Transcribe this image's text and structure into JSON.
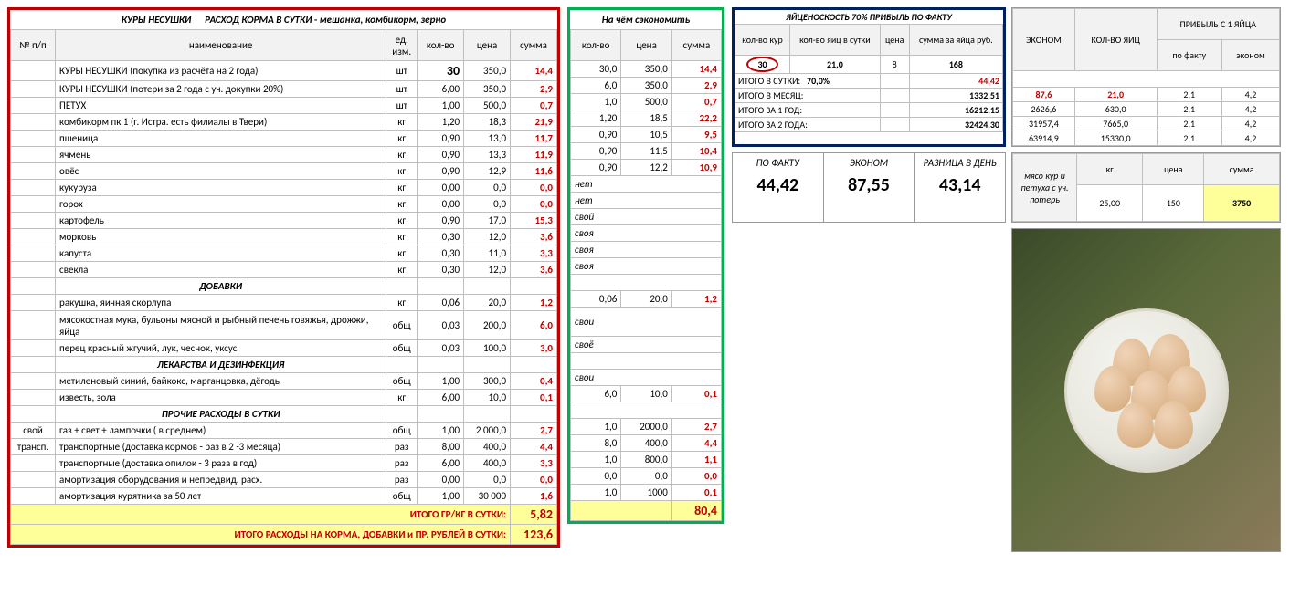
{
  "mainTable": {
    "titleLeft": "КУРЫ  НЕСУШКИ",
    "titleRight": "РАСХОД  КОРМА  В  СУТКИ -  мешанка, комбикорм, зерно",
    "headers": {
      "npp": "№ п/п",
      "name": "наименование",
      "unit": "ед. изм.",
      "qty": "кол-во",
      "price": "цена",
      "sum": "сумма"
    },
    "sideLabel1": "свой",
    "sideLabel2": "трансп.",
    "rows": [
      {
        "name": "КУРЫ НЕСУШКИ  (покупка из расчёта на 2 года)",
        "unit": "шт",
        "qty": "30",
        "price": "350,0",
        "sum": "14,4",
        "qtyBold": true
      },
      {
        "name": "КУРЫ НЕСУШКИ (потери за 2 года с уч. докупки 20%)",
        "unit": "шт",
        "qty": "6,00",
        "price": "350,0",
        "sum": "2,9"
      },
      {
        "name": "ПЕТУХ",
        "unit": "шт",
        "qty": "1,00",
        "price": "500,0",
        "sum": "0,7"
      },
      {
        "name": "комбикорм пк 1 (г. Истра. есть филиалы в Твери)",
        "unit": "кг",
        "qty": "1,20",
        "price": "18,3",
        "sum": "21,9"
      },
      {
        "name": "пшеница",
        "unit": "кг",
        "qty": "0,90",
        "price": "13,0",
        "sum": "11,7"
      },
      {
        "name": "ячмень",
        "unit": "кг",
        "qty": "0,90",
        "price": "13,3",
        "sum": "11,9"
      },
      {
        "name": "овёс",
        "unit": "кг",
        "qty": "0,90",
        "price": "12,9",
        "sum": "11,6"
      },
      {
        "name": "кукуруза",
        "unit": "кг",
        "qty": "0,00",
        "price": "0,0",
        "sum": "0,0"
      },
      {
        "name": "горох",
        "unit": "кг",
        "qty": "0,00",
        "price": "0,0",
        "sum": "0,0"
      },
      {
        "name": "картофель",
        "unit": "кг",
        "qty": "0,90",
        "price": "17,0",
        "sum": "15,3"
      },
      {
        "name": "морковь",
        "unit": "кг",
        "qty": "0,30",
        "price": "12,0",
        "sum": "3,6"
      },
      {
        "name": "капуста",
        "unit": "кг",
        "qty": "0,30",
        "price": "11,0",
        "sum": "3,3"
      },
      {
        "name": "свекла",
        "unit": "кг",
        "qty": "0,30",
        "price": "12,0",
        "sum": "3,6"
      },
      {
        "section": "ДОБАВКИ"
      },
      {
        "name": "ракушка, яичная скорлупа",
        "unit": "кг",
        "qty": "0,06",
        "price": "20,0",
        "sum": "1,2"
      },
      {
        "name": "мясокостная мука, бульоны мясной и рыбный печень говяжья, дрожжи, яйца",
        "unit": "общ",
        "qty": "0,03",
        "price": "200,0",
        "sum": "6,0",
        "tall": true
      },
      {
        "name": "перец красный жгучий, лук, чеснок, уксус",
        "unit": "общ",
        "qty": "0,03",
        "price": "100,0",
        "sum": "3,0"
      },
      {
        "section": "ЛЕКАРСТВА И ДЕЗИНФЕКЦИЯ"
      },
      {
        "name": "метиленовый синий, байкокс, марганцовка, дёгодь",
        "unit": "общ",
        "qty": "1,00",
        "price": "300,0",
        "sum": "0,4"
      },
      {
        "name": "известь, зола",
        "unit": "кг",
        "qty": "6,00",
        "price": "10,0",
        "sum": "0,1"
      },
      {
        "section": "ПРОЧИЕ РАСХОДЫ В СУТКИ"
      },
      {
        "name": "газ + свет + лампочки  ( в среднем)",
        "unit": "общ",
        "qty": "1,00",
        "price": "2 000,0",
        "sum": "2,7"
      },
      {
        "name": "транспортные (доставка кормов - раз в 2 -3 месяца)",
        "unit": "раз",
        "qty": "8,00",
        "price": "400,0",
        "sum": "4,4"
      },
      {
        "name": "транспортные (доставка опилок - 3 раза в год)",
        "unit": "раз",
        "qty": "6,00",
        "price": "400,0",
        "sum": "3,3"
      },
      {
        "name": "амортизация оборудования и непредвид. расх.",
        "unit": "раз",
        "qty": "0,00",
        "price": "0,0",
        "sum": "0,0"
      },
      {
        "name": "амортизация курятника за 50 лет",
        "unit": "общ",
        "qty": "1,00",
        "price": "30 000",
        "sum": "1,6"
      }
    ],
    "footer1Label": "ИТОГО ГР/КГ В СУТКИ:",
    "footer1Val": "5,82",
    "footer2Label": "ИТОГО РАСХОДЫ НА КОРМА, ДОБАВКИ и ПР. РУБЛЕЙ В СУТКИ:",
    "footer2Val": "123,6"
  },
  "econTable": {
    "title": "На чём сэкономить",
    "headers": {
      "qty": "кол-во",
      "price": "цена",
      "sum": "сумма"
    },
    "rows": [
      {
        "qty": "30,0",
        "price": "350,0",
        "sum": "14,4"
      },
      {
        "qty": "6,0",
        "price": "350,0",
        "sum": "2,9"
      },
      {
        "qty": "1,0",
        "price": "500,0",
        "sum": "0,7"
      },
      {
        "qty": "1,20",
        "price": "18,5",
        "sum": "22,2"
      },
      {
        "qty": "0,90",
        "price": "10,5",
        "sum": "9,5"
      },
      {
        "qty": "0,90",
        "price": "11,5",
        "sum": "10,4"
      },
      {
        "qty": "0,90",
        "price": "12,2",
        "sum": "10,9"
      },
      {
        "text": "нет"
      },
      {
        "text": "нет"
      },
      {
        "text": "свой"
      },
      {
        "text": "своя"
      },
      {
        "text": "своя"
      },
      {
        "text": "своя"
      },
      {
        "blank": true
      },
      {
        "qty": "0,06",
        "price": "20,0",
        "sum": "1,2"
      },
      {
        "text": "свои",
        "tall": true
      },
      {
        "text": "своё"
      },
      {
        "blank": true
      },
      {
        "text": "свои"
      },
      {
        "qty": "6,0",
        "price": "10,0",
        "sum": "0,1"
      },
      {
        "blank": true
      },
      {
        "qty": "1,0",
        "price": "2000,0",
        "sum": "2,7"
      },
      {
        "qty": "8,0",
        "price": "400,0",
        "sum": "4,4"
      },
      {
        "qty": "1,0",
        "price": "800,0",
        "sum": "1,1"
      },
      {
        "qty": "0,0",
        "price": "0,0",
        "sum": "0,0"
      },
      {
        "qty": "1,0",
        "price": "1000",
        "sum": "0,1"
      }
    ],
    "footerVal": "80,4"
  },
  "blueTable": {
    "title": "ЯЙЦЕНОСКОСТЬ 70% ПРИБЫЛЬ ПО ФАКТУ",
    "headers": {
      "kur": "кол-во кур",
      "eggs": "кол-во яиц в сутки",
      "price": "цена",
      "sum": "сумма за яйца руб."
    },
    "circled": "30",
    "eggs": "21,0",
    "price": "8",
    "sum": "168",
    "rows": [
      {
        "label": "ИТОГО  В  СУТКИ:",
        "pct": "70,0%",
        "val": "44,42",
        "red": true
      },
      {
        "label": "ИТОГО  В МЕСЯЦ:",
        "val": "1332,51"
      },
      {
        "label": "ИТОГО  ЗА 1  ГОД:",
        "val": "16212,15"
      },
      {
        "label": "ИТОГО  ЗА 2  ГОДА:",
        "val": "32424,30"
      }
    ]
  },
  "profitTable": {
    "h1": "ЭКОНОМ",
    "h2": "КОЛ-ВО ЯИЦ",
    "h3": "ПРИБЫЛЬ С 1 ЯЙЦА",
    "sub1": "по факту",
    "sub2": "эконом",
    "rows": [
      {
        "a": "87,6",
        "b": "21,0",
        "c": "2,1",
        "d": "4,2",
        "red": true
      },
      {
        "a": "2626,6",
        "b": "630,0",
        "c": "2,1",
        "d": "4,2"
      },
      {
        "a": "31957,4",
        "b": "7665,0",
        "c": "2,1",
        "d": "4,2"
      },
      {
        "a": "63914,9",
        "b": "15330,0",
        "c": "2,1",
        "d": "4,2"
      }
    ]
  },
  "summary": {
    "h1": "ПО ФАКТУ",
    "h2": "ЭКОНОМ",
    "h3": "РАЗНИЦА В ДЕНЬ",
    "v1": "44,42",
    "v2": "87,55",
    "v3": "43,14"
  },
  "meatTable": {
    "label": "мясо кур и петуха с уч. потерь",
    "h1": "кг",
    "h2": "цена",
    "h3": "сумма",
    "v1": "25,00",
    "v2": "150",
    "v3": "3750"
  }
}
